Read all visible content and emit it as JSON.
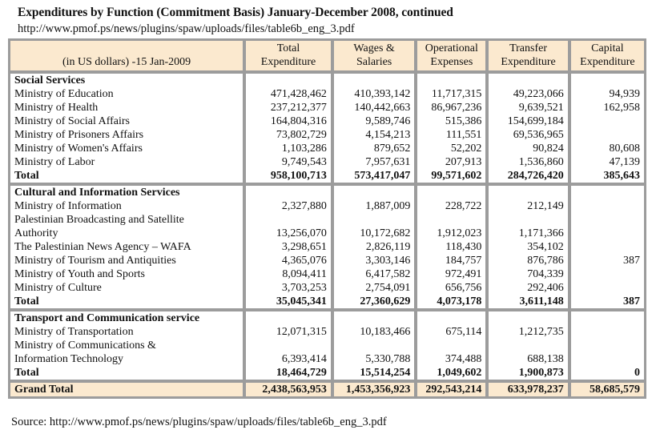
{
  "title": "Expenditures by Function (Commitment Basis) January-December 2008, continued",
  "url": "http://www.pmof.ps/news/plugins/spaw/uploads/files/table6b_eng_3.pdf",
  "header": {
    "label": "(in US dollars) -15 Jan-2009",
    "columns": [
      [
        "Total",
        "Expenditure"
      ],
      [
        "Wages &",
        "Salaries"
      ],
      [
        "Operational",
        "Expenses"
      ],
      [
        "Transfer",
        "Expenditure"
      ],
      [
        "Capital",
        "Expenditure"
      ]
    ]
  },
  "sections": [
    {
      "name": "Social Services",
      "rows": [
        {
          "label": "Ministry of Education",
          "values": [
            "471,428,462",
            "410,393,142",
            "11,717,315",
            "49,223,066",
            "94,939"
          ]
        },
        {
          "label": "Ministry of Health",
          "values": [
            "237,212,377",
            "140,442,663",
            "86,967,236",
            "9,639,521",
            "162,958"
          ]
        },
        {
          "label": "Ministry of Social Affairs",
          "values": [
            "164,804,316",
            "9,589,746",
            "515,386",
            "154,699,184",
            ""
          ]
        },
        {
          "label": "Ministry of Prisoners Affairs",
          "values": [
            "73,802,729",
            "4,154,213",
            "111,551",
            "69,536,965",
            ""
          ]
        },
        {
          "label": "Ministry of Women's Affairs",
          "values": [
            "1,103,286",
            "879,652",
            "52,202",
            "90,824",
            "80,608"
          ]
        },
        {
          "label": "Ministry of Labor",
          "values": [
            "9,749,543",
            "7,957,631",
            "207,913",
            "1,536,860",
            "47,139"
          ]
        }
      ],
      "total": {
        "label": "Total",
        "values": [
          "958,100,713",
          "573,417,047",
          "99,571,602",
          "284,726,420",
          "385,643"
        ]
      }
    },
    {
      "name": "Cultural and Information Services",
      "rows": [
        {
          "label": "Ministry of Information",
          "values": [
            "2,327,880",
            "1,887,009",
            "228,722",
            "212,149",
            ""
          ]
        },
        {
          "label": "Palestinian Broadcasting and Satellite",
          "values": [
            "",
            "",
            "",
            "",
            ""
          ]
        },
        {
          "label": "Authority",
          "values": [
            "13,256,070",
            "10,172,682",
            "1,912,023",
            "1,171,366",
            ""
          ]
        },
        {
          "label": "The Palestinian News Agency – WAFA",
          "values": [
            "3,298,651",
            "2,826,119",
            "118,430",
            "354,102",
            ""
          ]
        },
        {
          "label": "Ministry of Tourism and Antiquities",
          "values": [
            "4,365,076",
            "3,303,146",
            "184,757",
            "876,786",
            "387"
          ]
        },
        {
          "label": "Ministry of Youth and Sports",
          "values": [
            "8,094,411",
            "6,417,582",
            "972,491",
            "704,339",
            ""
          ]
        },
        {
          "label": "Ministry of Culture",
          "values": [
            "3,703,253",
            "2,754,091",
            "656,756",
            "292,406",
            ""
          ]
        }
      ],
      "total": {
        "label": "Total",
        "values": [
          "35,045,341",
          "27,360,629",
          "4,073,178",
          "3,611,148",
          "387"
        ]
      }
    },
    {
      "name": "Transport and Communication service",
      "rows": [
        {
          "label": "Ministry of Transportation",
          "values": [
            "12,071,315",
            "10,183,466",
            "675,114",
            "1,212,735",
            ""
          ]
        },
        {
          "label": "Ministry of Communications &",
          "values": [
            "",
            "",
            "",
            "",
            ""
          ]
        },
        {
          "label": "Information Technology",
          "values": [
            "6,393,414",
            "5,330,788",
            "374,488",
            "688,138",
            ""
          ]
        }
      ],
      "total": {
        "label": "Total",
        "values": [
          "18,464,729",
          "15,514,254",
          "1,049,602",
          "1,900,873",
          "0"
        ]
      }
    }
  ],
  "grand_total": {
    "label": "Grand Total",
    "values": [
      "2,438,563,953",
      "1,453,356,923",
      "292,543,214",
      "633,978,237",
      "58,685,579"
    ]
  },
  "source": "Source: http://www.pmof.ps/news/plugins/spaw/uploads/files/table6b_eng_3.pdf"
}
